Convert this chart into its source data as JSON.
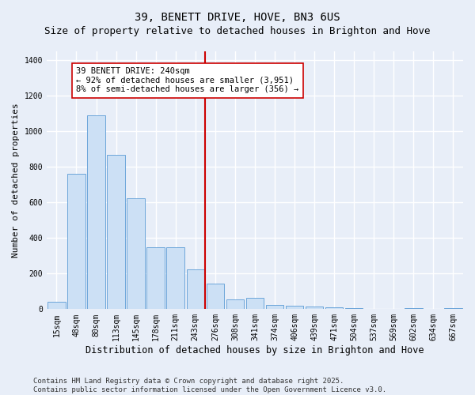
{
  "title": "39, BENETT DRIVE, HOVE, BN3 6US",
  "subtitle": "Size of property relative to detached houses in Brighton and Hove",
  "xlabel": "Distribution of detached houses by size in Brighton and Hove",
  "ylabel": "Number of detached properties",
  "categories": [
    "15sqm",
    "48sqm",
    "80sqm",
    "113sqm",
    "145sqm",
    "178sqm",
    "211sqm",
    "243sqm",
    "276sqm",
    "308sqm",
    "341sqm",
    "374sqm",
    "406sqm",
    "439sqm",
    "471sqm",
    "504sqm",
    "537sqm",
    "569sqm",
    "602sqm",
    "634sqm",
    "667sqm"
  ],
  "values": [
    40,
    760,
    1090,
    870,
    625,
    350,
    350,
    225,
    145,
    55,
    65,
    25,
    20,
    15,
    10,
    7,
    2,
    2,
    5,
    2,
    5
  ],
  "bar_color": "#cce0f5",
  "bar_edge_color": "#5b9bd5",
  "vline_index": 7.5,
  "vline_color": "#cc0000",
  "annotation_text": "39 BENETT DRIVE: 240sqm\n← 92% of detached houses are smaller (3,951)\n8% of semi-detached houses are larger (356) →",
  "annotation_box_color": "#ffffff",
  "annotation_box_edge": "#cc0000",
  "ylim": [
    0,
    1450
  ],
  "yticks": [
    0,
    200,
    400,
    600,
    800,
    1000,
    1200,
    1400
  ],
  "bg_color": "#e8eef8",
  "plot_bg_color": "#e8eef8",
  "grid_color": "#ffffff",
  "footer": "Contains HM Land Registry data © Crown copyright and database right 2025.\nContains public sector information licensed under the Open Government Licence v3.0.",
  "title_fontsize": 10,
  "subtitle_fontsize": 9,
  "xlabel_fontsize": 8.5,
  "ylabel_fontsize": 8,
  "tick_fontsize": 7,
  "annotation_fontsize": 7.5,
  "footer_fontsize": 6.5
}
